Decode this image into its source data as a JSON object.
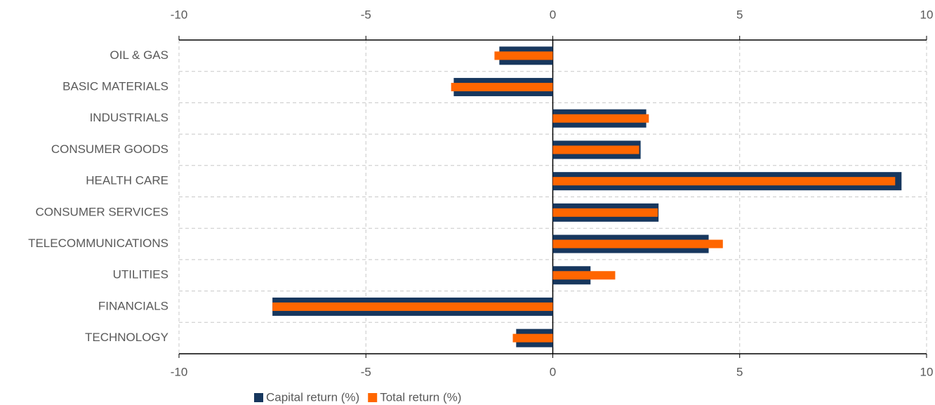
{
  "chart_data": {
    "type": "hbar",
    "categories": [
      "OIL & GAS",
      "BASIC MATERIALS",
      "INDUSTRIALS",
      "CONSUMER GOODS",
      "HEALTH CARE",
      "CONSUMER SERVICES",
      "TELECOMMUNICATIONS",
      "UTILITIES",
      "FINANCIALS",
      "TECHNOLOGY"
    ],
    "series": [
      {
        "name": "Capital return (%)",
        "color": "#17375e",
        "values": [
          -1.43,
          -2.65,
          2.5,
          2.35,
          9.33,
          2.83,
          4.17,
          1.01,
          -7.5,
          -0.98
        ]
      },
      {
        "name": "Total return (%)",
        "color": "#ff6600",
        "values": [
          -1.56,
          -2.72,
          2.57,
          2.31,
          9.16,
          2.81,
          4.55,
          1.67,
          -7.5,
          -1.07
        ]
      }
    ],
    "xlim": [
      -10,
      10
    ],
    "xticks": [
      -10,
      -5,
      0,
      5,
      10
    ],
    "grid": true,
    "legend": "bottom"
  }
}
